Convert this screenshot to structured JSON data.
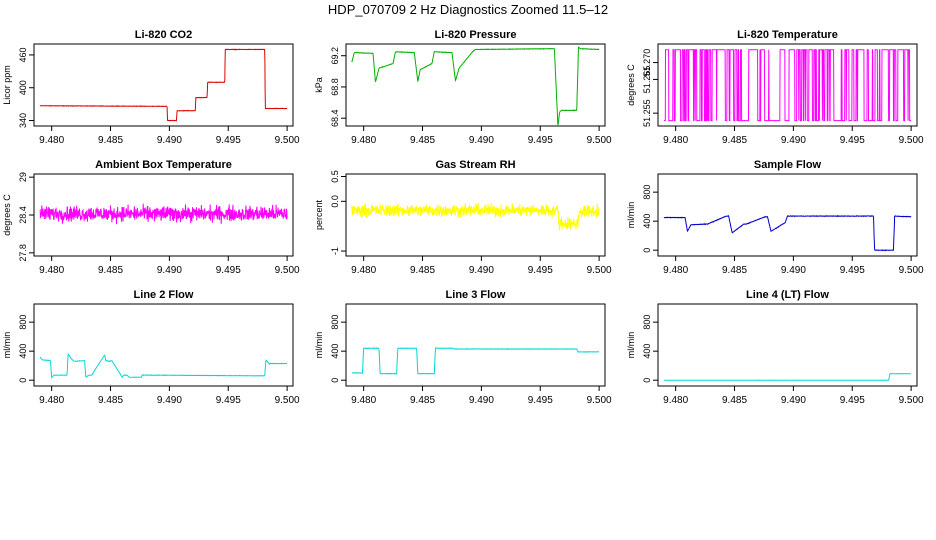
{
  "figure": {
    "title": "HDP_070709  2 Hz Diagnostics Zoomed 11.5–12"
  },
  "chart_data": [
    {
      "type": "line",
      "title": "Li-820 CO2",
      "ylabel": "Licor ppm",
      "xlim": [
        9.4785,
        9.5005
      ],
      "ylim": [
        330,
        480
      ],
      "xticks": [
        "9.480",
        "9.485",
        "9.490",
        "9.495",
        "9.500"
      ],
      "yticks": [
        340,
        400,
        460
      ],
      "color": "#e00000",
      "noise": 0.5,
      "series": [
        {
          "x": [
            9.479,
            9.4898,
            9.48985,
            9.4906,
            9.49065,
            9.4922,
            9.49225,
            9.4932,
            9.49325,
            9.4947,
            9.49475,
            9.4981,
            9.49815,
            9.5
          ],
          "values": [
            367,
            366,
            340,
            340,
            358,
            358,
            382,
            382,
            410,
            410,
            470,
            470,
            362,
            362
          ]
        }
      ]
    },
    {
      "type": "line",
      "title": "Li-820 Pressure",
      "ylabel": "kPa",
      "xlim": [
        9.4785,
        9.5005
      ],
      "ylim": [
        68.3,
        69.35
      ],
      "xticks": [
        "9.480",
        "9.485",
        "9.490",
        "9.495",
        "9.500"
      ],
      "yticks": [
        68.4,
        68.8,
        69.2
      ],
      "color": "#00b000",
      "noise": 0.004,
      "series": [
        {
          "x": [
            9.479,
            9.4792,
            9.4808,
            9.481,
            9.4813,
            9.4825,
            9.4827,
            9.4843,
            9.4846,
            9.4848,
            9.4858,
            9.486,
            9.4875,
            9.4878,
            9.4881,
            9.4893,
            9.4895,
            9.4962,
            9.4965,
            9.49665,
            9.4968,
            9.4981,
            9.49825,
            9.4984,
            9.5
          ],
          "values": [
            69.12,
            69.24,
            69.23,
            68.86,
            69.04,
            69.1,
            69.25,
            69.24,
            68.87,
            69.02,
            69.1,
            69.25,
            69.24,
            68.88,
            69.04,
            69.26,
            69.28,
            69.29,
            68.3,
            68.48,
            68.5,
            68.5,
            69.31,
            69.29,
            69.28
          ]
        }
      ]
    },
    {
      "type": "line",
      "title": "Li-820 Temperature",
      "ylabel": "degrees C",
      "xlim": [
        9.4785,
        9.5005
      ],
      "ylim": [
        51.2512,
        51.2755
      ],
      "xticks": [
        "9.480",
        "9.485",
        "9.490",
        "9.495",
        "9.500"
      ],
      "yticks": [
        51.255,
        51.265,
        51.27
      ],
      "color": "#ff00ff",
      "levels": [
        51.2528,
        51.2738
      ],
      "note_levels": "flicker between the two digitized levels"
    },
    {
      "type": "line",
      "title": "Ambient Box Temperature",
      "ylabel": "degrees C",
      "xlim": [
        9.4785,
        9.5005
      ],
      "ylim": [
        27.75,
        29.05
      ],
      "xticks": [
        "9.480",
        "9.485",
        "9.490",
        "9.495",
        "9.500"
      ],
      "yticks": [
        27.8,
        28.4,
        29.0
      ],
      "color": "#ff00ff",
      "noise": 0.18,
      "series": [
        {
          "x": [
            9.479,
            9.5
          ],
          "values": [
            28.42,
            28.42
          ]
        }
      ]
    },
    {
      "type": "line",
      "title": "Gas Stream RH",
      "ylabel": "percent",
      "xlim": [
        9.4785,
        9.5005
      ],
      "ylim": [
        -1.1,
        0.55
      ],
      "xticks": [
        "9.480",
        "9.485",
        "9.490",
        "9.495",
        "9.500"
      ],
      "yticks": [
        -1.0,
        0.0,
        0.5
      ],
      "color": "#ffff00",
      "noise": 0.18,
      "series": [
        {
          "x": [
            9.479,
            9.4965,
            9.4966,
            9.4982,
            9.4983,
            9.5
          ],
          "values": [
            -0.18,
            -0.18,
            -0.45,
            -0.45,
            -0.2,
            -0.2
          ]
        }
      ]
    },
    {
      "type": "line",
      "title": "Sample Flow",
      "ylabel": "ml/min",
      "xlim": [
        9.4785,
        9.5005
      ],
      "ylim": [
        -80,
        1050
      ],
      "xticks": [
        "9.480",
        "9.485",
        "9.490",
        "9.495",
        "9.500"
      ],
      "yticks": [
        0,
        400,
        800
      ],
      "color": "#0000cc",
      "noise": 5,
      "series": [
        {
          "x": [
            9.479,
            9.4808,
            9.481,
            9.4813,
            9.4825,
            9.4827,
            9.4843,
            9.4845,
            9.4848,
            9.4858,
            9.486,
            9.4876,
            9.4878,
            9.4881,
            9.4893,
            9.4895,
            9.4968,
            9.4969,
            9.4985,
            9.4986,
            9.5
          ],
          "values": [
            450,
            450,
            260,
            350,
            360,
            360,
            470,
            470,
            240,
            360,
            360,
            460,
            460,
            260,
            380,
            470,
            470,
            0,
            0,
            470,
            460
          ]
        }
      ]
    },
    {
      "type": "line",
      "title": "Line 2 Flow",
      "ylabel": "ml/min",
      "xlim": [
        9.4785,
        9.5005
      ],
      "ylim": [
        -80,
        1050
      ],
      "xticks": [
        "9.480",
        "9.485",
        "9.490",
        "9.495",
        "9.500"
      ],
      "yticks": [
        0,
        400,
        800
      ],
      "color": "#00d8d8",
      "noise": 4,
      "series": [
        {
          "x": [
            9.479,
            9.4792,
            9.4799,
            9.48,
            9.4802,
            9.4813,
            9.4814,
            9.4817,
            9.4819,
            9.4828,
            9.4829,
            9.4832,
            9.4834,
            9.4845,
            9.4846,
            9.4849,
            9.4851,
            9.486,
            9.4861,
            9.4864,
            9.4866,
            9.4876,
            9.4877,
            9.488,
            9.4882,
            9.4981,
            9.4982,
            9.4985,
            9.49855,
            9.5
          ],
          "values": [
            320,
            280,
            270,
            40,
            70,
            70,
            360,
            290,
            260,
            270,
            40,
            70,
            70,
            350,
            270,
            260,
            270,
            40,
            70,
            70,
            40,
            40,
            70,
            70,
            70,
            60,
            280,
            220,
            230,
            230
          ]
        }
      ]
    },
    {
      "type": "line",
      "title": "Line 3 Flow",
      "ylabel": "ml/min",
      "xlim": [
        9.4785,
        9.5005
      ],
      "ylim": [
        -80,
        1050
      ],
      "xticks": [
        "9.480",
        "9.485",
        "9.490",
        "9.495",
        "9.500"
      ],
      "yticks": [
        0,
        400,
        800
      ],
      "color": "#00d8d8",
      "noise": 4,
      "series": [
        {
          "x": [
            9.479,
            9.4799,
            9.48,
            9.4813,
            9.4814,
            9.4828,
            9.4829,
            9.4845,
            9.4846,
            9.486,
            9.4861,
            9.4876,
            9.4877,
            9.4981,
            9.4982,
            9.5
          ],
          "values": [
            100,
            100,
            440,
            440,
            90,
            90,
            440,
            440,
            90,
            90,
            440,
            440,
            430,
            430,
            390,
            390
          ]
        }
      ]
    },
    {
      "type": "line",
      "title": "Line 4 (LT) Flow",
      "ylabel": "ml/min",
      "xlim": [
        9.4785,
        9.5005
      ],
      "ylim": [
        -80,
        1050
      ],
      "xticks": [
        "9.480",
        "9.485",
        "9.490",
        "9.495",
        "9.500"
      ],
      "yticks": [
        0,
        400,
        800
      ],
      "color": "#00d8d8",
      "noise": 1,
      "series": [
        {
          "x": [
            9.479,
            9.4981,
            9.4982,
            9.5
          ],
          "values": [
            0,
            0,
            90,
            90
          ]
        }
      ]
    }
  ]
}
